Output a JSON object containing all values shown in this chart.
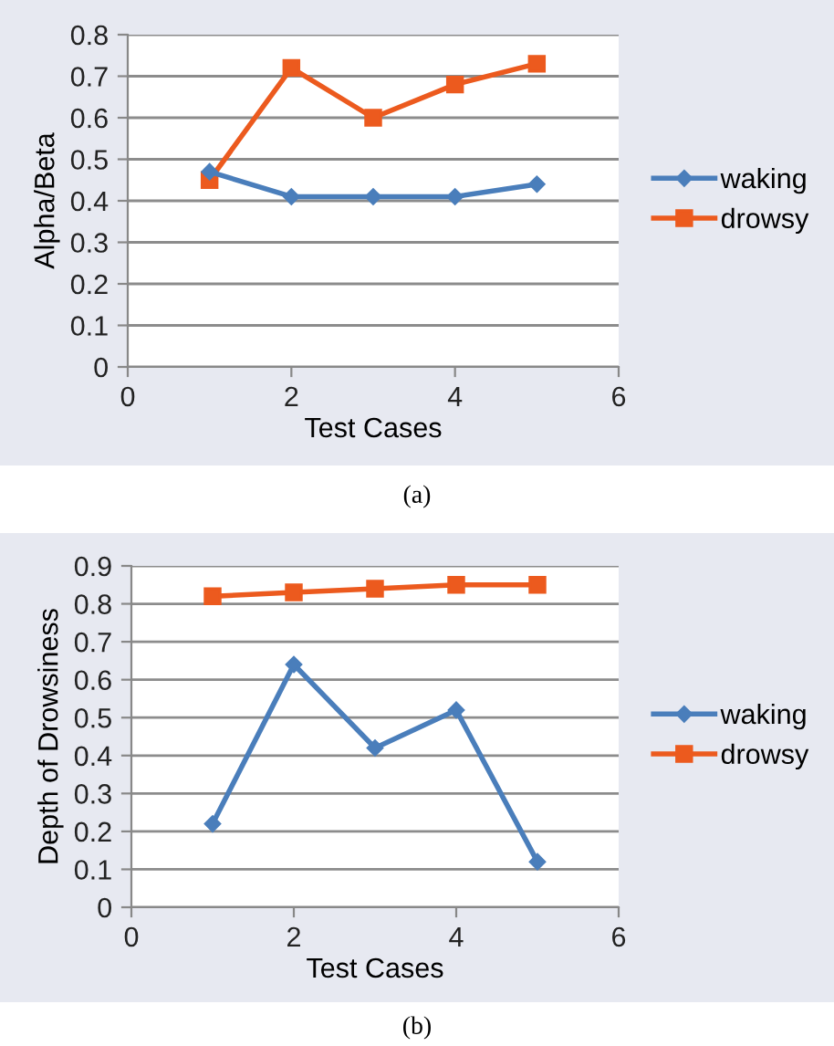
{
  "chart_data": [
    {
      "type": "line",
      "xlabel": "Test Cases",
      "ylabel": "Alpha/Beta",
      "x": [
        1,
        2,
        3,
        4,
        5
      ],
      "xlim": [
        0,
        6
      ],
      "xticks": [
        0,
        2,
        4,
        6
      ],
      "ylim": [
        0,
        0.8
      ],
      "yticks": [
        0,
        0.1,
        0.2,
        0.3,
        0.4,
        0.5,
        0.6,
        0.7,
        0.8
      ],
      "grid": "y",
      "legend": "right",
      "annotations": [
        "(a)"
      ],
      "series": [
        {
          "name": "waking",
          "color": "#4a7ebb",
          "marker": "diamond",
          "values": [
            0.47,
            0.41,
            0.41,
            0.41,
            0.44
          ]
        },
        {
          "name": "drowsy",
          "color": "#ec5a1e",
          "marker": "square",
          "values": [
            0.45,
            0.72,
            0.6,
            0.68,
            0.73
          ]
        }
      ]
    },
    {
      "type": "line",
      "xlabel": "Test Cases",
      "ylabel": "Depth of Drowsiness",
      "x": [
        1,
        2,
        3,
        4,
        5
      ],
      "xlim": [
        0,
        6
      ],
      "xticks": [
        0,
        2,
        4,
        6
      ],
      "ylim": [
        0,
        0.9
      ],
      "yticks": [
        0,
        0.1,
        0.2,
        0.3,
        0.4,
        0.5,
        0.6,
        0.7,
        0.8,
        0.9
      ],
      "grid": "y",
      "legend": "right",
      "annotations": [
        "(b)"
      ],
      "series": [
        {
          "name": "waking",
          "color": "#4a7ebb",
          "marker": "diamond",
          "values": [
            0.22,
            0.64,
            0.42,
            0.52,
            0.12
          ]
        },
        {
          "name": "drowsy",
          "color": "#ec5a1e",
          "marker": "square",
          "values": [
            0.82,
            0.83,
            0.84,
            0.85,
            0.85
          ]
        }
      ]
    }
  ]
}
